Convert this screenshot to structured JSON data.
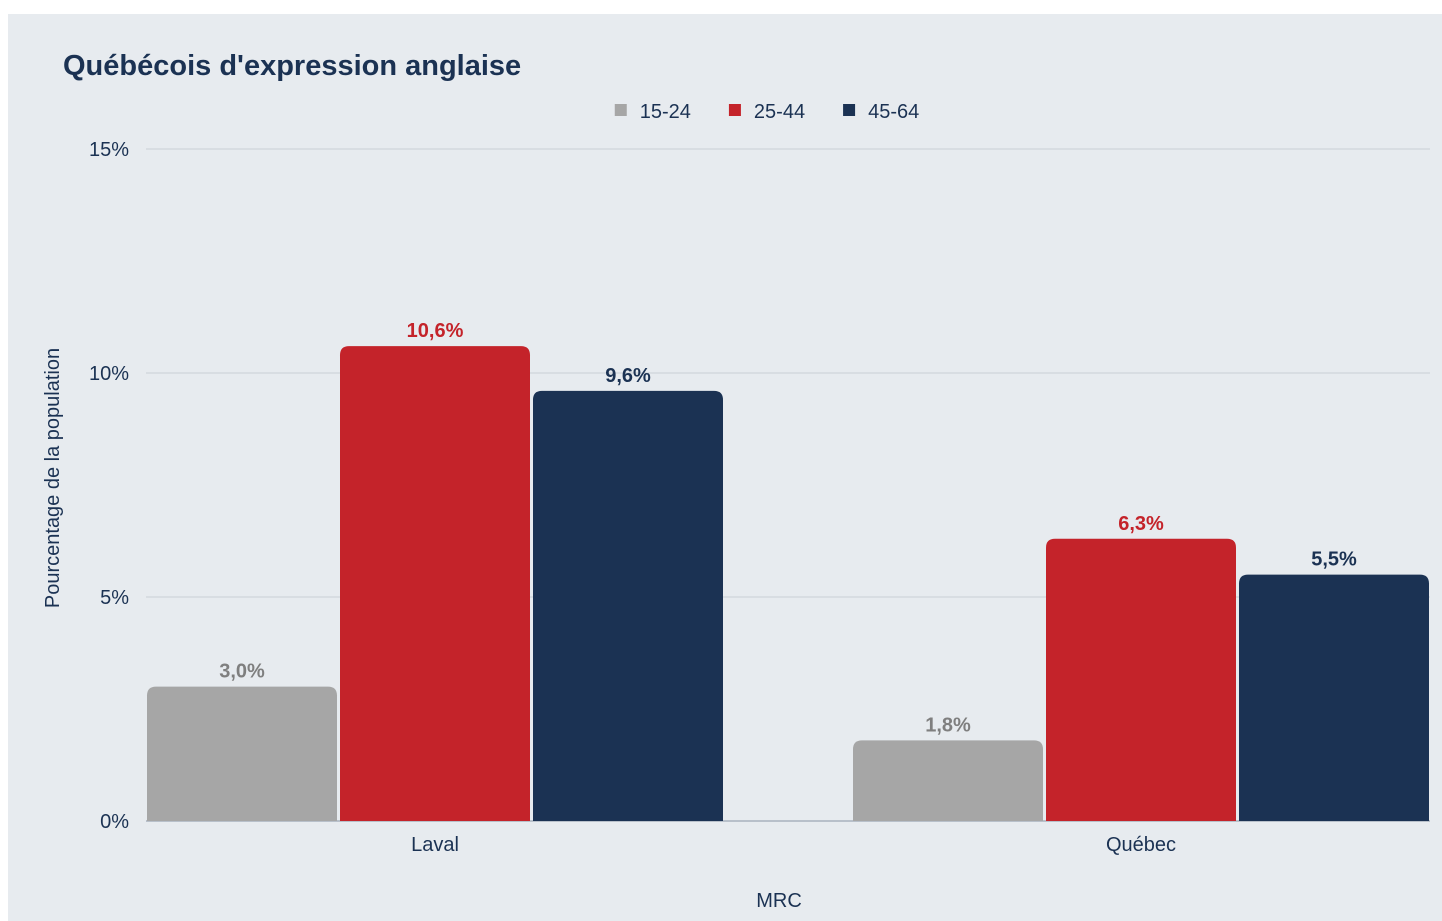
{
  "chart_data": {
    "type": "bar",
    "title": "Québécois d'expression anglaise",
    "xlabel": "MRC",
    "ylabel": "Pourcentage de la population",
    "categories": [
      "Laval",
      "Québec"
    ],
    "series": [
      {
        "name": "15-24",
        "color": "#a6a6a6",
        "label_color": "#7f7f7f",
        "values": [
          3.0,
          1.8
        ],
        "labels": [
          "3,0%",
          "1,8%"
        ]
      },
      {
        "name": "25-44",
        "color": "#c4232a",
        "label_color": "#c4232a",
        "values": [
          10.6,
          6.3
        ],
        "labels": [
          "10,6%",
          "6,3%"
        ]
      },
      {
        "name": "45-64",
        "color": "#1b3253",
        "label_color": "#1b3253",
        "values": [
          9.6,
          5.5
        ],
        "labels": [
          "9,6%",
          "5,5%"
        ]
      }
    ],
    "ylim": [
      0,
      15
    ],
    "yticks": [
      0,
      5,
      10,
      15
    ],
    "ytick_labels": [
      "0%",
      "5%",
      "10%",
      "15%"
    ],
    "grid": true,
    "legend_position": "top-center",
    "text_color": "#1b3253",
    "grid_color": "#c9cfd6"
  }
}
